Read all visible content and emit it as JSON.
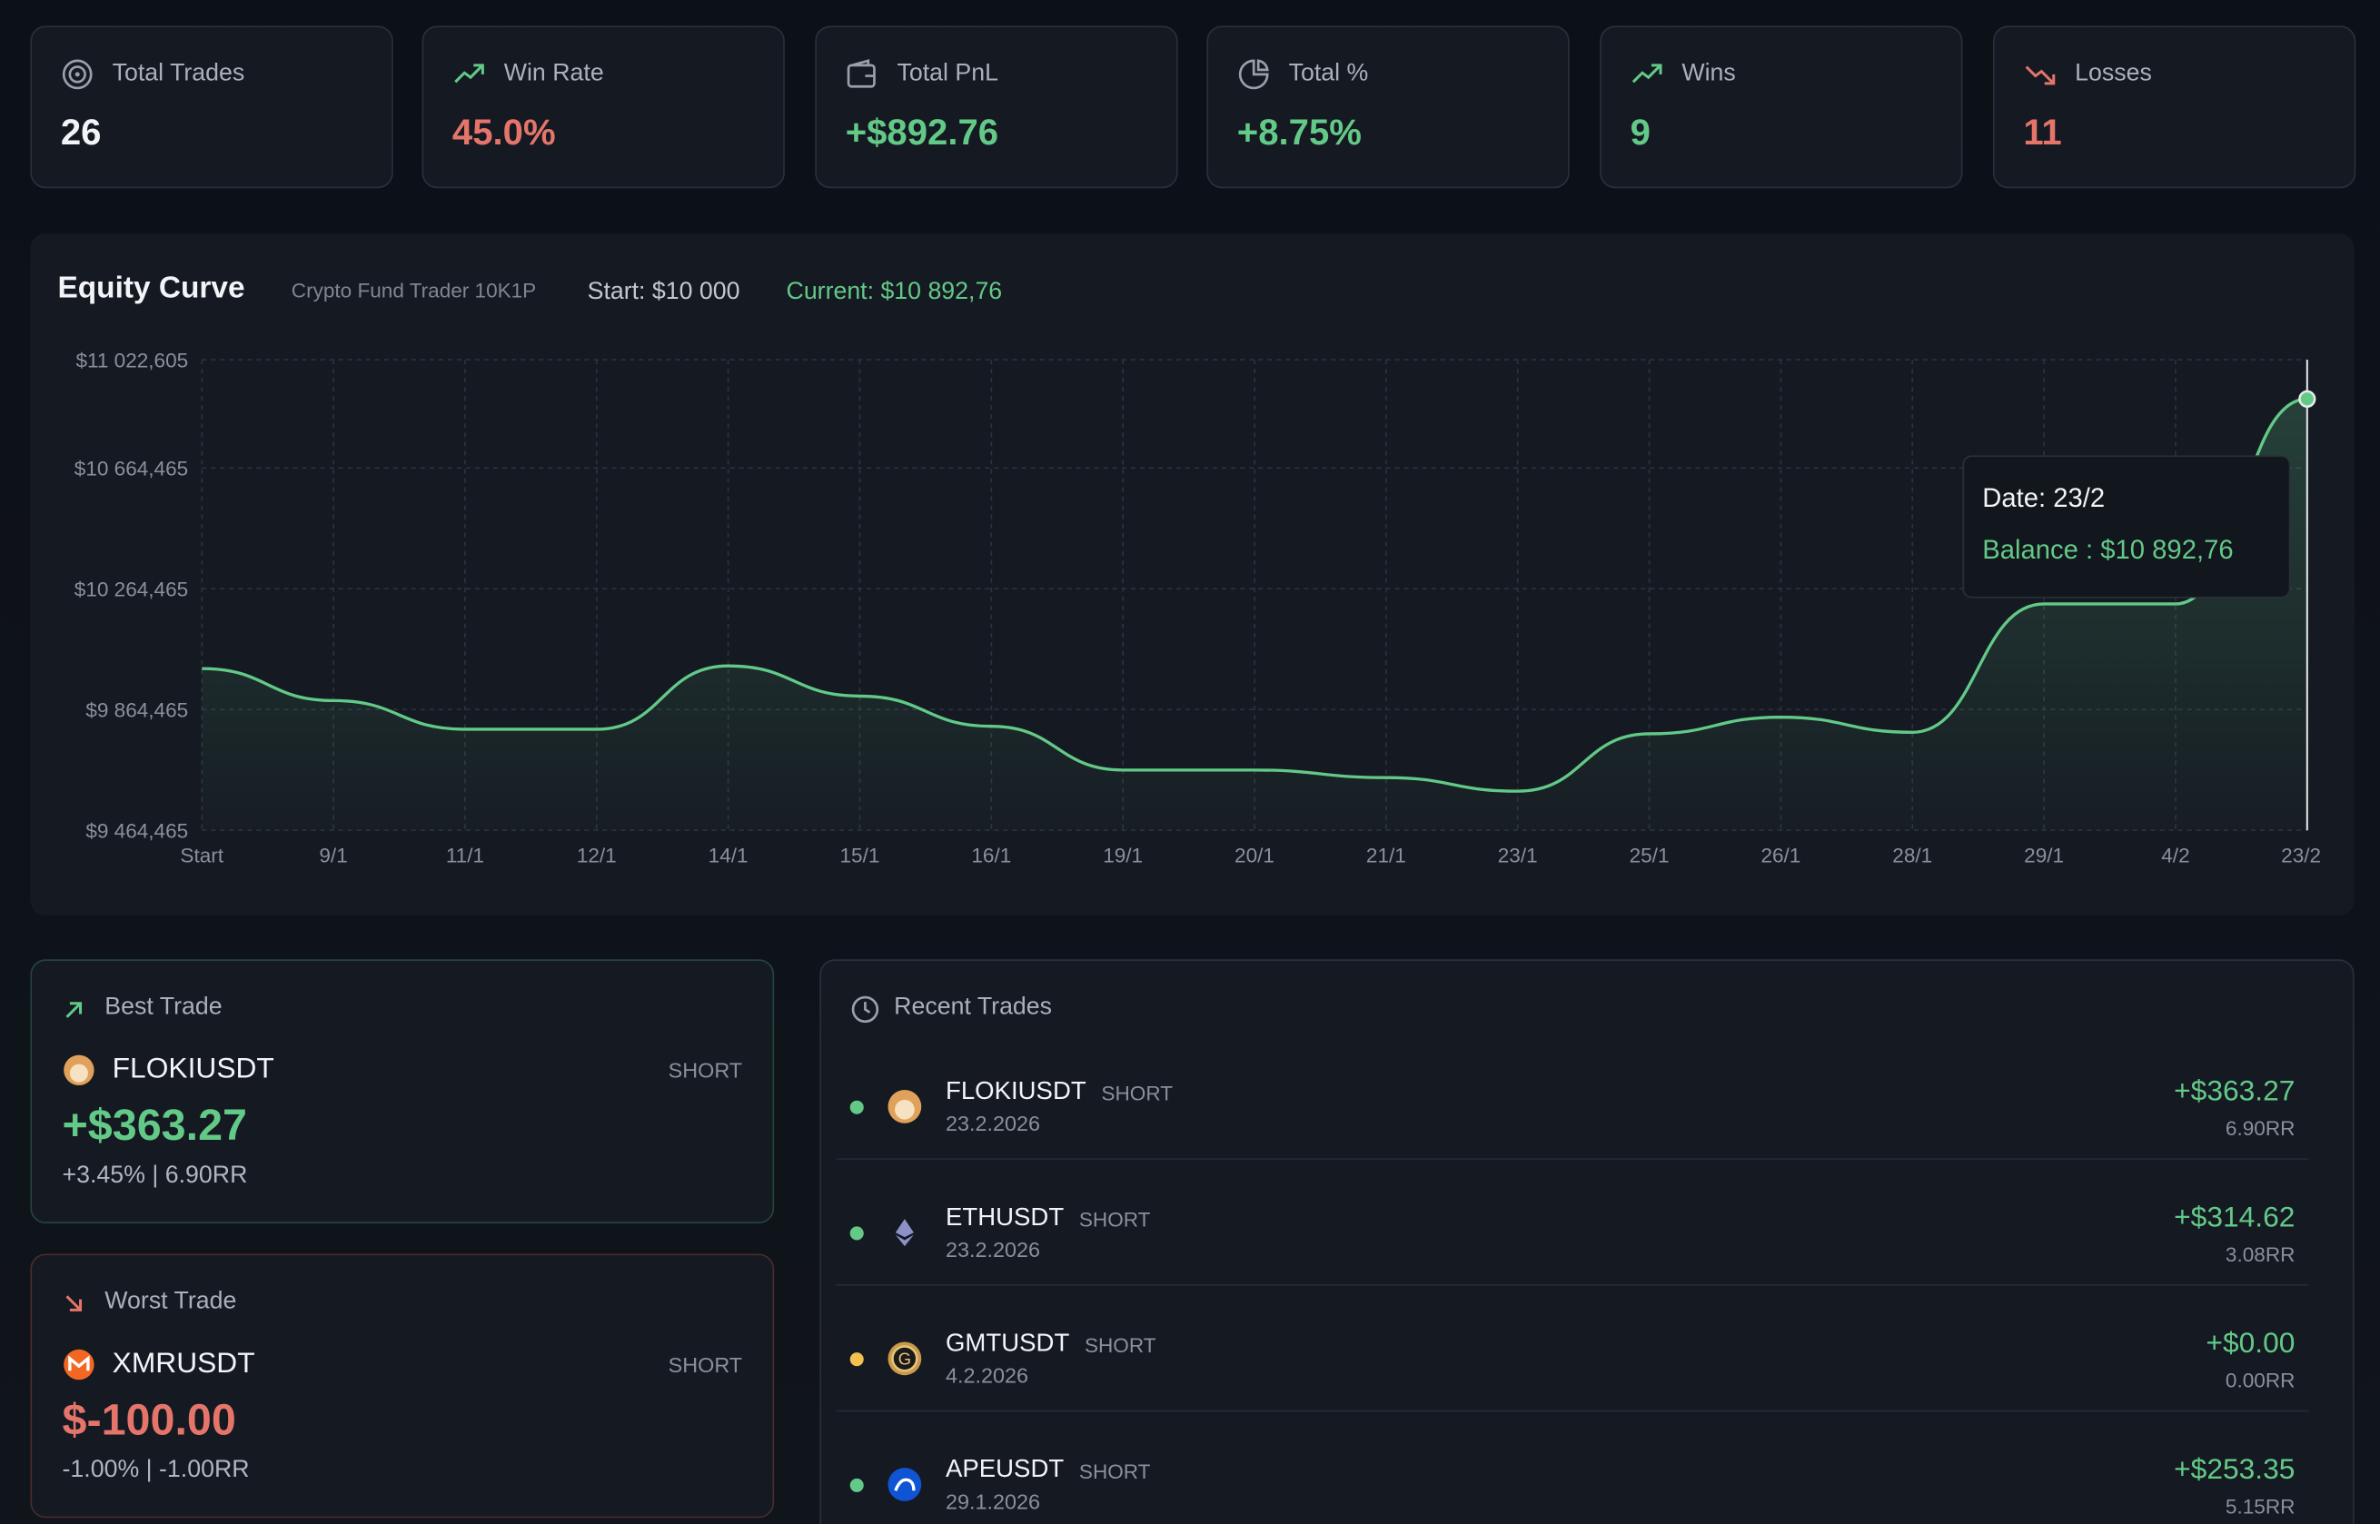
{
  "stats": [
    {
      "label": "Total Trades",
      "value": "26"
    },
    {
      "label": "Win Rate",
      "value": "45.0%"
    },
    {
      "label": "Total PnL",
      "value": "+$892.76"
    },
    {
      "label": "Total %",
      "value": "+8.75%"
    },
    {
      "label": "Wins",
      "value": "9"
    },
    {
      "label": "Losses",
      "value": "11"
    }
  ],
  "chart_data": {
    "type": "line",
    "title": "Equity Curve",
    "subtitle": "Crypto Fund Trader 10K1P",
    "start_label": "Start: $10 000",
    "current_label": "Current: $10 892,76",
    "categories": [
      "Start",
      "9/1",
      "11/1",
      "12/1",
      "14/1",
      "15/1",
      "16/1",
      "19/1",
      "20/1",
      "21/1",
      "23/1",
      "25/1",
      "26/1",
      "28/1",
      "29/1",
      "4/2",
      "23/2"
    ],
    "values": [
      10000,
      9894,
      9799,
      9799,
      10009,
      9909,
      9809,
      9664,
      9664,
      9639,
      9594,
      9784,
      9839,
      9789,
      10214,
      10214,
      10892.76
    ],
    "color": "#63c987",
    "ylim": [
      9464.465,
      11022.605
    ],
    "yticks": [
      {
        "value": 9464.465,
        "label": "$9 464,465"
      },
      {
        "value": 9864.465,
        "label": "$9 864,465"
      },
      {
        "value": 10264.465,
        "label": "$10 264,465"
      },
      {
        "value": 10664.465,
        "label": "$10 664,465"
      },
      {
        "value": 11022.605,
        "label": "$11 022,605"
      }
    ],
    "grid": true,
    "tooltip": {
      "date": "Date: 23/2",
      "balance": "Balance : $10 892,76"
    }
  },
  "best_trade": {
    "heading": "Best Trade",
    "symbol": "FLOKIUSDT",
    "side": "SHORT",
    "pnl": "+$363.27",
    "detail": "+3.45% | 6.90RR"
  },
  "worst_trade": {
    "heading": "Worst Trade",
    "symbol": "XMRUSDT",
    "side": "SHORT",
    "pnl": "$-100.00",
    "detail": "-1.00% | -1.00RR"
  },
  "recent_trades": {
    "heading": "Recent Trades",
    "rows": [
      {
        "symbol": "FLOKIUSDT",
        "side": "SHORT",
        "date": "23.2.2026",
        "pnl": "+$363.27",
        "rr": "6.90RR"
      },
      {
        "symbol": "ETHUSDT",
        "side": "SHORT",
        "date": "23.2.2026",
        "pnl": "+$314.62",
        "rr": "3.08RR"
      },
      {
        "symbol": "GMTUSDT",
        "side": "SHORT",
        "date": "4.2.2026",
        "pnl": "+$0.00",
        "rr": "0.00RR"
      },
      {
        "symbol": "APEUSDT",
        "side": "SHORT",
        "date": "29.1.2026",
        "pnl": "+$253.35",
        "rr": "5.15RR"
      }
    ]
  }
}
